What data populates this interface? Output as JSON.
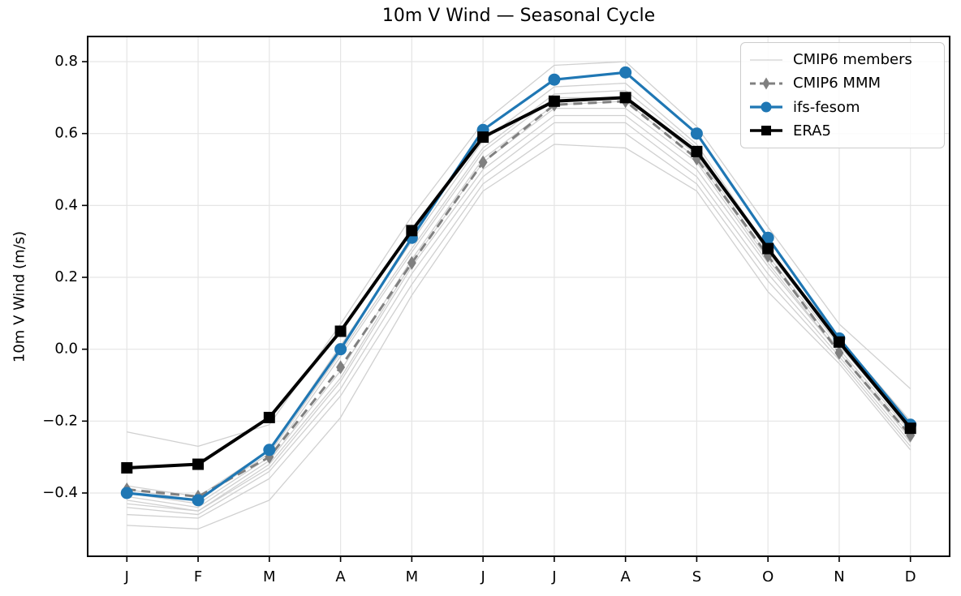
{
  "chart_data": {
    "type": "line",
    "title": "10m V Wind — Seasonal Cycle",
    "xlabel": "",
    "ylabel": "10m V Wind (m/s)",
    "categories": [
      "J",
      "F",
      "M",
      "A",
      "M",
      "J",
      "J",
      "A",
      "S",
      "O",
      "N",
      "D"
    ],
    "yticks": [
      0.8,
      0.6,
      0.4,
      0.2,
      0.0,
      -0.2,
      -0.4
    ],
    "ytick_labels": [
      "0.8",
      "0.6",
      "0.4",
      "0.2",
      "0.0",
      "−0.2",
      "−0.4"
    ],
    "ylim": [
      -0.576,
      0.87
    ],
    "grid": true,
    "legend_position": "upper right",
    "colors": {
      "ensemble": "#d0d0d0",
      "mmm": "#808080",
      "ifs_fesom": "#1f77b4",
      "era5": "#000000",
      "gridline": "#e5e5e5",
      "spine": "#000000",
      "legend_border": "#cccccc"
    },
    "series": [
      {
        "name": "CMIP6 members",
        "slug": "cmip6-members",
        "role": "ensemble",
        "color": "#d0d0d0",
        "linewidth": 1.3,
        "marker": "none",
        "dash": false,
        "values_list": [
          [
            -0.23,
            -0.27,
            -0.21,
            0.07,
            0.37,
            0.63,
            0.79,
            0.8,
            0.62,
            0.34,
            0.07,
            -0.11
          ],
          [
            -0.38,
            -0.41,
            -0.28,
            0.01,
            0.3,
            0.58,
            0.73,
            0.74,
            0.57,
            0.28,
            0.03,
            -0.2
          ],
          [
            -0.39,
            -0.42,
            -0.29,
            -0.01,
            0.28,
            0.56,
            0.71,
            0.72,
            0.56,
            0.27,
            0.02,
            -0.21
          ],
          [
            -0.4,
            -0.43,
            -0.3,
            -0.02,
            0.27,
            0.55,
            0.7,
            0.7,
            0.54,
            0.26,
            0.01,
            -0.22
          ],
          [
            -0.41,
            -0.44,
            -0.31,
            -0.06,
            0.25,
            0.53,
            0.68,
            0.69,
            0.53,
            0.25,
            0.0,
            -0.23
          ],
          [
            -0.42,
            -0.45,
            -0.32,
            -0.08,
            0.24,
            0.52,
            0.67,
            0.67,
            0.52,
            0.24,
            -0.01,
            -0.24
          ],
          [
            -0.43,
            -0.45,
            -0.33,
            -0.09,
            0.23,
            0.5,
            0.65,
            0.65,
            0.5,
            0.23,
            -0.01,
            -0.25
          ],
          [
            -0.44,
            -0.46,
            -0.34,
            -0.11,
            0.21,
            0.48,
            0.63,
            0.63,
            0.48,
            0.21,
            -0.02,
            -0.26
          ],
          [
            -0.46,
            -0.47,
            -0.36,
            -0.13,
            0.18,
            0.46,
            0.6,
            0.6,
            0.46,
            0.19,
            -0.03,
            -0.27
          ],
          [
            -0.49,
            -0.5,
            -0.42,
            -0.19,
            0.15,
            0.44,
            0.57,
            0.56,
            0.44,
            0.16,
            -0.04,
            -0.28
          ]
        ]
      },
      {
        "name": "CMIP6 MMM",
        "slug": "cmip6-mmm",
        "role": "line",
        "color": "#808080",
        "linewidth": 3,
        "marker": "thin-diamond",
        "dash": true,
        "values": [
          -0.39,
          -0.41,
          -0.3,
          -0.05,
          0.24,
          0.52,
          0.68,
          0.69,
          0.53,
          0.26,
          -0.01,
          -0.24
        ]
      },
      {
        "name": "ifs-fesom",
        "slug": "ifs-fesom",
        "role": "line",
        "color": "#1f77b4",
        "linewidth": 3.2,
        "marker": "circle",
        "dash": false,
        "values": [
          -0.4,
          -0.42,
          -0.28,
          0.0,
          0.31,
          0.61,
          0.75,
          0.77,
          0.6,
          0.31,
          0.03,
          -0.21
        ]
      },
      {
        "name": "ERA5",
        "slug": "era5",
        "role": "line",
        "color": "#000000",
        "linewidth": 4,
        "marker": "square",
        "dash": false,
        "values": [
          -0.33,
          -0.32,
          -0.19,
          0.05,
          0.33,
          0.59,
          0.69,
          0.7,
          0.55,
          0.28,
          0.02,
          -0.22
        ]
      }
    ]
  }
}
